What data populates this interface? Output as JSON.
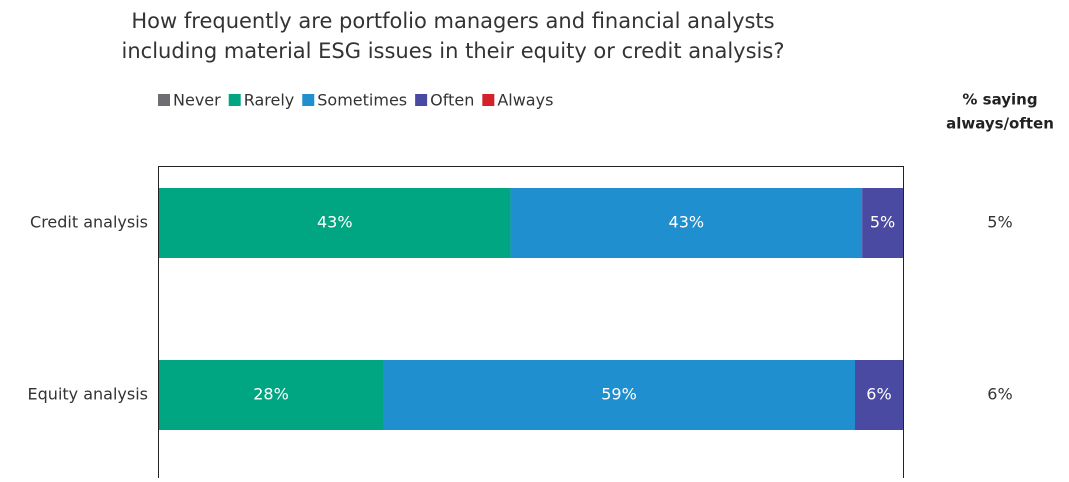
{
  "chart_data": {
    "type": "stacked_bar_horizontal",
    "title_lines": [
      "How frequently are portfolio managers and financial analysts",
      "including material ESG issues in their equity or credit analysis?"
    ],
    "categories": [
      "Credit analysis",
      "Equity analysis"
    ],
    "series": [
      {
        "name": "Never",
        "color": "#6d6e71",
        "values": [
          0,
          0
        ],
        "value_labels": [
          null,
          null
        ]
      },
      {
        "name": "Rarely",
        "color": "#00a682",
        "values": [
          43,
          28
        ],
        "value_labels": [
          "43%",
          "28%"
        ]
      },
      {
        "name": "Sometimes",
        "color": "#1f8fd0",
        "values": [
          43,
          59
        ],
        "value_labels": [
          "43%",
          "59%"
        ]
      },
      {
        "name": "Often",
        "color": "#4b4aa3",
        "values": [
          5,
          6
        ],
        "value_labels": [
          "5%",
          "6%"
        ]
      },
      {
        "name": "Always",
        "color": "#d2232a",
        "values": [
          0,
          0
        ],
        "value_labels": [
          null,
          null
        ]
      }
    ],
    "side_column": {
      "title_lines": [
        "% saying",
        "always/often"
      ],
      "values": [
        5,
        6
      ],
      "value_labels": [
        "5%",
        "6%"
      ]
    }
  }
}
